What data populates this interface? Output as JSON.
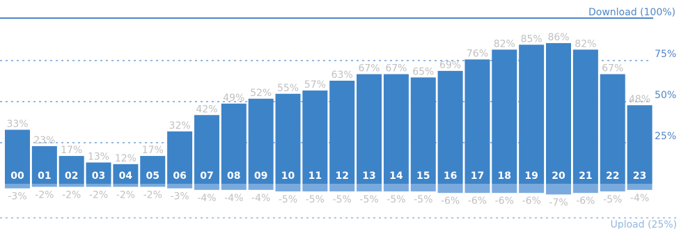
{
  "chart_data": {
    "type": "bar",
    "categories": [
      "00",
      "01",
      "02",
      "03",
      "04",
      "05",
      "06",
      "07",
      "08",
      "09",
      "10",
      "11",
      "12",
      "13",
      "14",
      "15",
      "16",
      "17",
      "18",
      "19",
      "20",
      "21",
      "22",
      "23"
    ],
    "series": [
      {
        "name": "Download (100%)",
        "values": [
          33,
          23,
          17,
          13,
          12,
          17,
          32,
          42,
          49,
          52,
          55,
          57,
          63,
          67,
          67,
          65,
          69,
          76,
          82,
          85,
          86,
          82,
          67,
          48
        ],
        "color": "#3d83c8"
      },
      {
        "name": "Upload (25%)",
        "values": [
          -3,
          -2,
          -2,
          -2,
          -2,
          -2,
          -3,
          -4,
          -4,
          -4,
          -5,
          -5,
          -5,
          -5,
          -5,
          -5,
          -6,
          -6,
          -6,
          -6,
          -7,
          -6,
          -5,
          -4
        ],
        "color": "#7aaadd"
      }
    ],
    "download_ticks": [
      "75%",
      "50%",
      "25%"
    ],
    "upload_max_label": "Upload (25%)",
    "download_max_label": "Download (100%)",
    "grid": true
  }
}
